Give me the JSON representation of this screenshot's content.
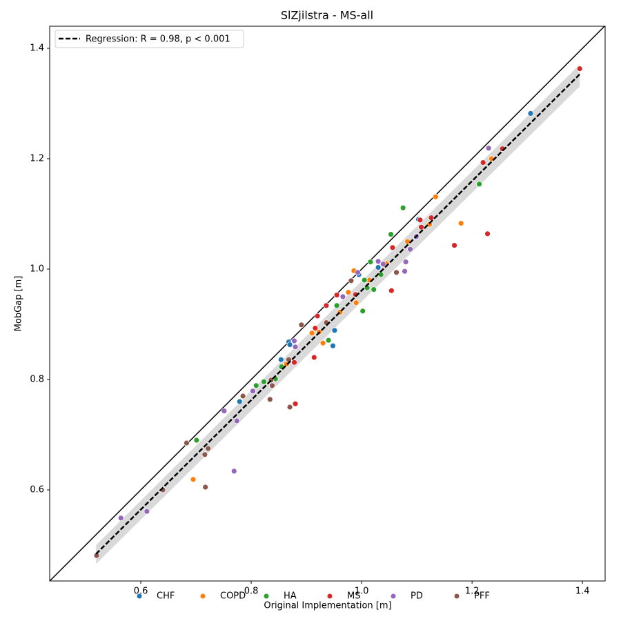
{
  "chart_data": {
    "type": "scatter",
    "title": "SlZjilstra - MS-all",
    "x_label": "Original Implementation [m]",
    "y_label": "MobGap [m]",
    "xlim": [
      0.435,
      1.441
    ],
    "ylim": [
      0.435,
      1.44
    ],
    "xticks": [
      0.6,
      0.8,
      {
        "value": 1,
        "label": "1.0"
      },
      1.2,
      1.4
    ],
    "yticks": [
      0.6,
      0.8,
      {
        "value": 1,
        "label": "1.0"
      },
      1.2,
      1.4
    ],
    "identity_line": true,
    "legend_loc": "upper left",
    "regression": {
      "label": "Regression: R = 0.98, p < 0.001",
      "color": "#000000",
      "x": [
        0.519,
        1.395
      ],
      "y": [
        0.484,
        1.353
      ],
      "band_lower": [
        0.466,
        1.331
      ],
      "band_upper": [
        0.5,
        1.371
      ],
      "band_color": "#d9d9d9"
    },
    "series": [
      {
        "name": "CHF",
        "color": "#1f77b4",
        "x": [
          1.306,
          1.103,
          0.868,
          0.87,
          0.854,
          0.951,
          0.948,
          0.779,
          0.995,
          1.03
        ],
        "values": [
          1.282,
          1.09,
          0.868,
          0.863,
          0.836,
          0.889,
          0.861,
          0.76,
          0.99,
          1.003
        ]
      },
      {
        "name": "COPD",
        "color": "#ff7f0e",
        "x": [
          1.235,
          1.134,
          1.18,
          1.123,
          1.083,
          1.045,
          1.014,
          0.986,
          0.976,
          0.99,
          0.961,
          0.91,
          0.923,
          0.93,
          0.864,
          0.695
        ],
        "values": [
          1.2,
          1.131,
          1.083,
          1.081,
          1.05,
          1.01,
          0.98,
          0.997,
          0.958,
          0.939,
          0.922,
          0.884,
          0.886,
          0.866,
          0.828,
          0.619
        ]
      },
      {
        "name": "HA",
        "color": "#2ca02c",
        "x": [
          1.213,
          1.075,
          1.053,
          1.016,
          1.005,
          1.035,
          1.022,
          1.01,
          0.955,
          1.002,
          0.94,
          0.855,
          0.844,
          0.823,
          0.809,
          0.701
        ],
        "values": [
          1.154,
          1.111,
          1.063,
          1.013,
          0.98,
          0.99,
          0.963,
          0.966,
          0.934,
          0.924,
          0.871,
          0.823,
          0.801,
          0.796,
          0.789,
          0.69
        ]
      },
      {
        "name": "MS",
        "color": "#d62728",
        "x": [
          1.395,
          1.22,
          1.255,
          1.126,
          1.106,
          1.108,
          1.056,
          1.168,
          1.228,
          1.054,
          0.989,
          0.955,
          0.936,
          0.92,
          0.916,
          0.914,
          0.878,
          0.88
        ],
        "values": [
          1.363,
          1.193,
          1.218,
          1.093,
          1.089,
          1.076,
          1.039,
          1.043,
          1.064,
          0.961,
          0.954,
          0.953,
          0.934,
          0.915,
          0.893,
          0.84,
          0.831,
          0.756
        ]
      },
      {
        "name": "PD",
        "color": "#9467bd",
        "x": [
          1.23,
          1.099,
          1.088,
          1.08,
          1.078,
          1.03,
          1.039,
          0.993,
          0.966,
          0.878,
          0.88,
          0.803,
          0.751,
          0.774,
          0.769,
          0.564,
          0.611
        ],
        "values": [
          1.219,
          1.059,
          1.036,
          1.013,
          0.996,
          1.014,
          1.009,
          0.994,
          0.95,
          0.87,
          0.859,
          0.779,
          0.743,
          0.725,
          0.634,
          0.549,
          0.561
        ]
      },
      {
        "name": "PFF",
        "color": "#8c564b",
        "x": [
          1.063,
          0.981,
          0.936,
          0.891,
          0.868,
          0.836,
          0.838,
          0.834,
          0.785,
          0.87,
          0.683,
          0.716,
          0.722,
          0.717,
          0.64,
          0.52
        ],
        "values": [
          0.994,
          0.979,
          0.903,
          0.899,
          0.836,
          0.799,
          0.789,
          0.764,
          0.77,
          0.75,
          0.685,
          0.664,
          0.675,
          0.605,
          0.6,
          0.481
        ]
      }
    ]
  }
}
